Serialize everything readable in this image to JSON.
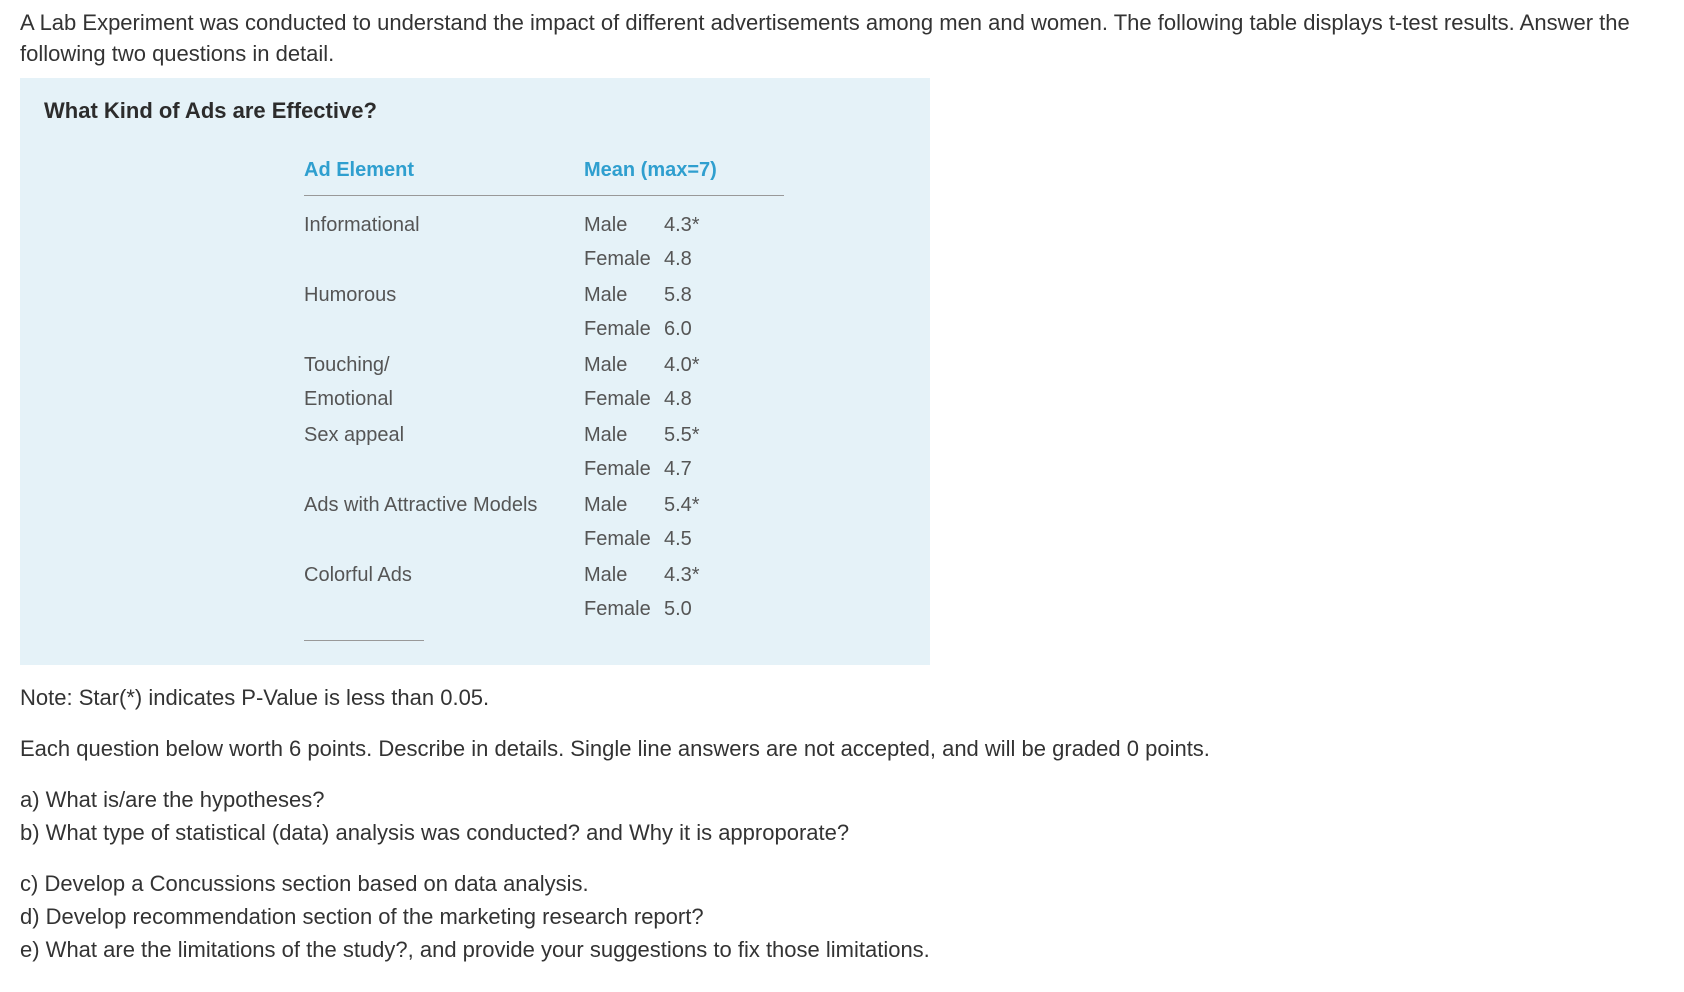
{
  "intro_text": "A Lab Experiment was conducted to understand the impact of different advertisements among men and women.  The following table displays t-test results. Answer the following two questions in detail.",
  "table": {
    "title": "What Kind of Ads are Effective?",
    "background_color": "#e5f2f8",
    "header_color": "#2f9fcf",
    "text_color": "#555555",
    "header": {
      "col1": "Ad Element",
      "col2": "Mean (max=7)"
    },
    "rows": [
      {
        "ad_element": "Informational",
        "male_label": "Male",
        "male_value": "4.3*",
        "female_label": "Female",
        "female_value": "4.8"
      },
      {
        "ad_element": "Humorous",
        "male_label": "Male",
        "male_value": "5.8",
        "female_label": "Female",
        "female_value": "6.0"
      },
      {
        "ad_element": "Touching/\nEmotional",
        "male_label": "Male",
        "male_value": "4.0*",
        "female_label": "Female",
        "female_value": "4.8"
      },
      {
        "ad_element": "Sex appeal",
        "male_label": "Male",
        "male_value": "5.5*",
        "female_label": "Female",
        "female_value": "4.7"
      },
      {
        "ad_element": "Ads with Attractive Models",
        "male_label": "Male",
        "male_value": "5.4*",
        "female_label": "Female",
        "female_value": "4.5"
      },
      {
        "ad_element": "Colorful Ads",
        "male_label": "Male",
        "male_value": "4.3*",
        "female_label": "Female",
        "female_value": "5.0"
      }
    ]
  },
  "note_text": "Note: Star(*) indicates P-Value is less than 0.05.",
  "instructions_text": "Each question below worth 6 points. Describe in details. Single line answers are not accepted, and will be graded 0 points.",
  "questions": {
    "a": "a) What is/are the hypotheses?",
    "b": "b) What type of statistical (data) analysis was conducted? and Why it is approporate?",
    "c": "c) Develop a Concussions section based on data analysis.",
    "d": "d) Develop recommendation section of the marketing research report?",
    "e": "e) What are the limitations of the study?, and provide your suggestions to fix those limitations."
  }
}
